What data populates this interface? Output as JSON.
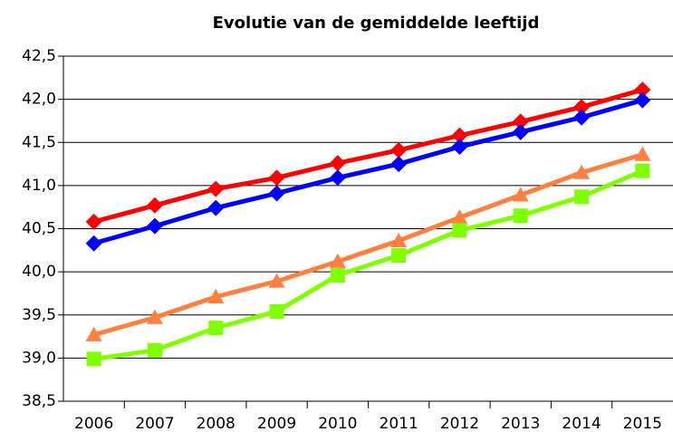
{
  "chart_data": {
    "type": "line",
    "title": "Evolutie van de gemiddelde leeftijd",
    "categories": [
      "2006",
      "2007",
      "2008",
      "2009",
      "2010",
      "2011",
      "2012",
      "2013",
      "2014",
      "2015"
    ],
    "series": [
      {
        "color": "#ff0000",
        "marker": "diamond",
        "values": [
          40.58,
          40.77,
          40.96,
          41.09,
          41.26,
          41.41,
          41.58,
          41.74,
          41.91,
          42.11
        ]
      },
      {
        "color": "#0000ff",
        "marker": "diamond",
        "values": [
          40.33,
          40.53,
          40.74,
          40.91,
          41.09,
          41.25,
          41.45,
          41.62,
          41.79,
          41.99
        ]
      },
      {
        "color": "#ff8040",
        "marker": "triangle",
        "values": [
          39.27,
          39.47,
          39.71,
          39.89,
          40.12,
          40.36,
          40.63,
          40.89,
          41.15,
          41.36
        ]
      },
      {
        "color": "#80ff00",
        "marker": "square",
        "values": [
          38.99,
          39.09,
          39.35,
          39.54,
          39.96,
          40.19,
          40.48,
          40.65,
          40.87,
          41.17
        ]
      }
    ],
    "ylim": [
      38.5,
      42.5
    ],
    "yticks": [
      {
        "value": 38.5,
        "label": "38,5"
      },
      {
        "value": 39,
        "label": "39,0"
      },
      {
        "value": 39.5,
        "label": "39,5"
      },
      {
        "value": 40,
        "label": "40,0"
      },
      {
        "value": 40.5,
        "label": "40,5"
      },
      {
        "value": 41,
        "label": "41,0"
      },
      {
        "value": 41.5,
        "label": "41,5"
      },
      {
        "value": 42,
        "label": "42,0"
      },
      {
        "value": 42.5,
        "label": "42,5"
      }
    ],
    "grid": true
  }
}
